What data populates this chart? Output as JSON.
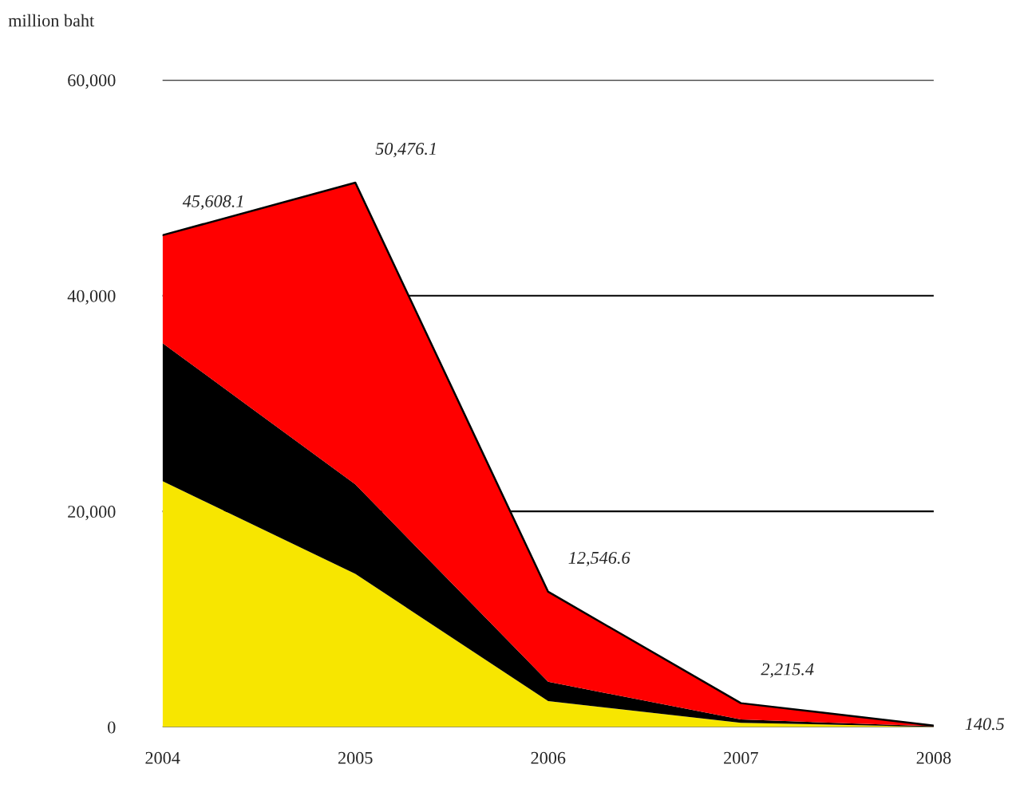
{
  "chart_data": {
    "type": "area",
    "stacked": true,
    "ylabel": "million baht",
    "categories": [
      "2004",
      "2005",
      "2006",
      "2007",
      "2008"
    ],
    "series": [
      {
        "color": "#f7e600",
        "values": [
          22800,
          14200,
          2400,
          400,
          30
        ]
      },
      {
        "color": "#000000",
        "values": [
          12800,
          8300,
          1800,
          300,
          50
        ]
      },
      {
        "color": "#ff0000",
        "values": [
          10008.1,
          27976.1,
          8346.6,
          1515.4,
          60.5
        ]
      }
    ],
    "totals": [
      "45,608.1",
      "50,476.1",
      "12,546.6",
      "2,215.4",
      "140.5"
    ],
    "ylim": [
      0,
      60000
    ],
    "yticks": [
      {
        "value": 0,
        "label": "0"
      },
      {
        "value": 20000,
        "label": "20,000"
      },
      {
        "value": 40000,
        "label": "40,000"
      },
      {
        "value": 60000,
        "label": "60,000"
      }
    ],
    "grid": "y",
    "legend": false
  }
}
